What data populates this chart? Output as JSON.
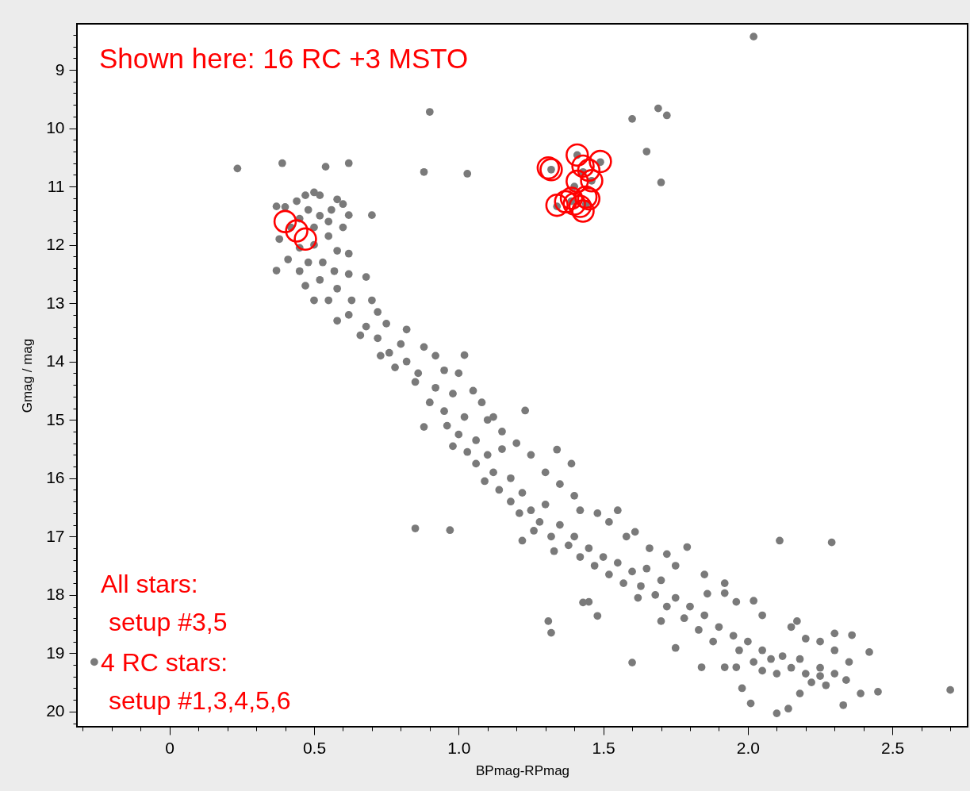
{
  "chart_data": {
    "type": "scatter",
    "xlabel": "BPmag-RPmag",
    "ylabel": "Gmag / mag",
    "annotations": [
      "Shown here: 16 RC +3 MSTO",
      "All stars:",
      "setup #3,5",
      "4 RC stars:",
      "setup #1,3,4,5,6"
    ],
    "xlim": [
      -0.32,
      2.76
    ],
    "ylim": [
      20.26,
      8.21
    ],
    "xticks": [
      {
        "value": -0.3,
        "label": null
      },
      {
        "value": -0.2,
        "label": null
      },
      {
        "value": -0.1,
        "label": null
      },
      0,
      {
        "value": 0.1,
        "label": null
      },
      {
        "value": 0.2,
        "label": null
      },
      {
        "value": 0.3,
        "label": null
      },
      {
        "value": 0.4,
        "label": null
      },
      0.5,
      {
        "value": 0.6,
        "label": null
      },
      {
        "value": 0.7,
        "label": null
      },
      {
        "value": 0.8,
        "label": null
      },
      {
        "value": 0.9,
        "label": null
      },
      {
        "value": 1,
        "label": "1.0"
      },
      {
        "value": 1.1,
        "label": null
      },
      {
        "value": 1.2,
        "label": null
      },
      {
        "value": 1.3,
        "label": null
      },
      {
        "value": 1.4,
        "label": null
      },
      1.5,
      {
        "value": 1.6,
        "label": null
      },
      {
        "value": 1.7,
        "label": null
      },
      {
        "value": 1.8,
        "label": null
      },
      {
        "value": 1.9,
        "label": null
      },
      {
        "value": 2,
        "label": "2.0"
      },
      {
        "value": 2.1,
        "label": null
      },
      {
        "value": 2.2,
        "label": null
      },
      {
        "value": 2.3,
        "label": null
      },
      {
        "value": 2.4,
        "label": null
      },
      2.5,
      {
        "value": 2.6,
        "label": null
      },
      {
        "value": 2.7,
        "label": null
      }
    ],
    "yticks": [
      {
        "value": 8.4,
        "label": null
      },
      {
        "value": 8.6,
        "label": null
      },
      {
        "value": 8.8,
        "label": null
      },
      9,
      {
        "value": 9.2,
        "label": null
      },
      {
        "value": 9.4,
        "label": null
      },
      {
        "value": 9.6,
        "label": null
      },
      {
        "value": 9.8,
        "label": null
      },
      10,
      {
        "value": 10.2,
        "label": null
      },
      {
        "value": 10.4,
        "label": null
      },
      {
        "value": 10.6,
        "label": null
      },
      {
        "value": 10.8,
        "label": null
      },
      11,
      {
        "value": 11.2,
        "label": null
      },
      {
        "value": 11.4,
        "label": null
      },
      {
        "value": 11.6,
        "label": null
      },
      {
        "value": 11.8,
        "label": null
      },
      12,
      {
        "value": 12.2,
        "label": null
      },
      {
        "value": 12.4,
        "label": null
      },
      {
        "value": 12.6,
        "label": null
      },
      {
        "value": 12.8,
        "label": null
      },
      13,
      {
        "value": 13.2,
        "label": null
      },
      {
        "value": 13.4,
        "label": null
      },
      {
        "value": 13.6,
        "label": null
      },
      {
        "value": 13.8,
        "label": null
      },
      14,
      {
        "value": 14.2,
        "label": null
      },
      {
        "value": 14.4,
        "label": null
      },
      {
        "value": 14.6,
        "label": null
      },
      {
        "value": 14.8,
        "label": null
      },
      15,
      {
        "value": 15.2,
        "label": null
      },
      {
        "value": 15.4,
        "label": null
      },
      {
        "value": 15.6,
        "label": null
      },
      {
        "value": 15.8,
        "label": null
      },
      16,
      {
        "value": 16.2,
        "label": null
      },
      {
        "value": 16.4,
        "label": null
      },
      {
        "value": 16.6,
        "label": null
      },
      {
        "value": 16.8,
        "label": null
      },
      17,
      {
        "value": 17.2,
        "label": null
      },
      {
        "value": 17.4,
        "label": null
      },
      {
        "value": 17.6,
        "label": null
      },
      {
        "value": 17.8,
        "label": null
      },
      18,
      {
        "value": 18.2,
        "label": null
      },
      {
        "value": 18.4,
        "label": null
      },
      {
        "value": 18.6,
        "label": null
      },
      {
        "value": 18.8,
        "label": null
      },
      19,
      {
        "value": 19.2,
        "label": null
      },
      {
        "value": 19.4,
        "label": null
      },
      {
        "value": 19.6,
        "label": null
      },
      {
        "value": 19.8,
        "label": null
      },
      20,
      {
        "value": 20.2,
        "label": null
      }
    ],
    "marker": "circle",
    "series": [
      {
        "color": "#7a7a7a",
        "x": [
          0.235,
          0.39,
          0.54,
          0.62,
          0.88,
          1.03,
          0.9,
          0.7,
          0.62,
          1.02,
          0.37,
          0.37,
          2.02,
          1.6,
          1.69,
          1.72,
          1.65,
          1.7,
          -0.26,
          0.85,
          0.97,
          0.88,
          2.11,
          2.29,
          2.7,
          2.45,
          2.39,
          2.33,
          2.1,
          2.14,
          2.01,
          1.98,
          2.42,
          2.36,
          2.3,
          2.17,
          1.31,
          1.32,
          1.6,
          1.79,
          1.23,
          1.22,
          1.34,
          1.39,
          1.61,
          1.48,
          2.34,
          2.25,
          2.18,
          1.92,
          1.84,
          1.96,
          1.75,
          1.86,
          1.96,
          1.92,
          1.45,
          1.43,
          1.32,
          1.41,
          1.49,
          1.46,
          1.34,
          1.4,
          1.43,
          1.44,
          1.39,
          0.4,
          0.44,
          0.47,
          0.5,
          0.52,
          0.58,
          0.6,
          0.56,
          0.48,
          0.52,
          0.45,
          0.55,
          0.6,
          0.5,
          0.42,
          0.38,
          0.55,
          0.5,
          0.45,
          0.58,
          0.62,
          0.41,
          0.48,
          0.53,
          0.57,
          0.45,
          0.62,
          0.68,
          0.52,
          0.47,
          0.58,
          0.55,
          0.5,
          0.63,
          0.7,
          0.72,
          0.62,
          0.58,
          0.68,
          0.75,
          0.82,
          0.66,
          0.72,
          0.8,
          0.88,
          0.92,
          0.76,
          0.73,
          0.82,
          0.78,
          0.86,
          0.95,
          1.0,
          0.85,
          0.92,
          0.98,
          1.05,
          1.08,
          0.9,
          0.95,
          1.02,
          1.1,
          0.96,
          1.0,
          1.06,
          0.98,
          1.03,
          1.1,
          1.15,
          1.06,
          1.12,
          1.18,
          1.09,
          1.14,
          1.22,
          1.18,
          1.25,
          1.3,
          1.21,
          1.28,
          1.35,
          1.26,
          1.32,
          1.4,
          1.38,
          1.45,
          1.33,
          1.42,
          1.5,
          1.47,
          1.55,
          1.52,
          1.6,
          1.65,
          1.57,
          1.63,
          1.7,
          1.68,
          1.75,
          1.62,
          1.72,
          1.8,
          1.78,
          1.85,
          1.7,
          1.83,
          1.9,
          1.95,
          1.88,
          2.0,
          1.97,
          2.05,
          2.08,
          2.02,
          2.12,
          2.15,
          2.18,
          2.1,
          2.2,
          2.25,
          2.22,
          2.27,
          2.3,
          2.05,
          1.3,
          1.35,
          1.4,
          1.42,
          1.48,
          1.55,
          1.52,
          1.58,
          1.66,
          1.72,
          1.75,
          1.85,
          1.92,
          2.02,
          2.05,
          2.15,
          2.2,
          2.3,
          2.35,
          2.25,
          1.15,
          1.2,
          1.25,
          1.12
        ],
        "values": [
          10.69,
          10.6,
          10.66,
          10.6,
          10.75,
          10.78,
          9.72,
          11.49,
          11.49,
          13.89,
          12.44,
          11.34,
          8.43,
          9.84,
          9.66,
          9.78,
          10.4,
          10.93,
          19.15,
          16.86,
          16.89,
          15.12,
          17.07,
          17.1,
          19.63,
          19.66,
          19.69,
          19.89,
          20.03,
          19.95,
          19.86,
          19.6,
          18.98,
          18.69,
          18.66,
          18.45,
          18.45,
          18.65,
          19.16,
          17.18,
          14.84,
          17.07,
          15.51,
          15.75,
          16.92,
          18.36,
          19.46,
          19.39,
          19.69,
          19.24,
          19.24,
          19.24,
          18.91,
          17.98,
          18.12,
          17.97,
          18.12,
          18.13,
          10.71,
          10.46,
          10.58,
          10.9,
          11.34,
          11.0,
          10.75,
          11.3,
          11.25,
          11.35,
          11.25,
          11.15,
          11.1,
          11.15,
          11.22,
          11.3,
          11.4,
          11.4,
          11.5,
          11.55,
          11.6,
          11.7,
          11.7,
          11.7,
          11.9,
          11.85,
          12.0,
          12.05,
          12.1,
          12.15,
          12.25,
          12.3,
          12.3,
          12.45,
          12.45,
          12.5,
          12.55,
          12.6,
          12.7,
          12.75,
          12.95,
          12.95,
          12.95,
          12.95,
          13.15,
          13.2,
          13.3,
          13.4,
          13.35,
          13.45,
          13.55,
          13.6,
          13.7,
          13.75,
          13.9,
          13.85,
          13.9,
          14.0,
          14.1,
          14.2,
          14.15,
          14.2,
          14.35,
          14.45,
          14.55,
          14.5,
          14.7,
          14.7,
          14.85,
          14.95,
          15.0,
          15.1,
          15.25,
          15.35,
          15.45,
          15.55,
          15.6,
          15.5,
          15.75,
          15.9,
          16.0,
          16.05,
          16.2,
          16.25,
          16.4,
          16.55,
          16.45,
          16.6,
          16.75,
          16.8,
          16.9,
          17.0,
          17.0,
          17.15,
          17.2,
          17.25,
          17.35,
          17.35,
          17.5,
          17.45,
          17.65,
          17.6,
          17.55,
          17.8,
          17.85,
          17.75,
          18.0,
          18.05,
          18.05,
          18.2,
          18.2,
          18.4,
          18.35,
          18.45,
          18.6,
          18.55,
          18.7,
          18.8,
          18.8,
          18.95,
          18.95,
          19.1,
          19.15,
          19.05,
          19.25,
          19.1,
          19.35,
          19.35,
          19.25,
          19.5,
          19.55,
          19.35,
          19.3,
          15.9,
          16.1,
          16.3,
          16.55,
          16.6,
          16.55,
          16.75,
          17.0,
          17.2,
          17.3,
          17.5,
          17.65,
          17.8,
          18.1,
          18.35,
          18.55,
          18.75,
          18.95,
          19.15,
          18.8,
          15.2,
          15.4,
          15.6,
          14.95
        ]
      },
      {
        "color": "#ff0000",
        "x": [
          0.4,
          0.44,
          0.47,
          1.32,
          1.31,
          1.41,
          1.49,
          1.45,
          1.43,
          1.46,
          1.41,
          1.34,
          1.37,
          1.39,
          1.44,
          1.42,
          1.43,
          1.4,
          1.45
        ],
        "values": [
          11.6,
          11.76,
          11.9,
          10.71,
          10.68,
          10.46,
          10.57,
          10.72,
          10.65,
          10.9,
          10.91,
          11.32,
          11.26,
          11.2,
          11.18,
          11.34,
          11.42,
          11.3,
          11.21
        ]
      }
    ]
  }
}
